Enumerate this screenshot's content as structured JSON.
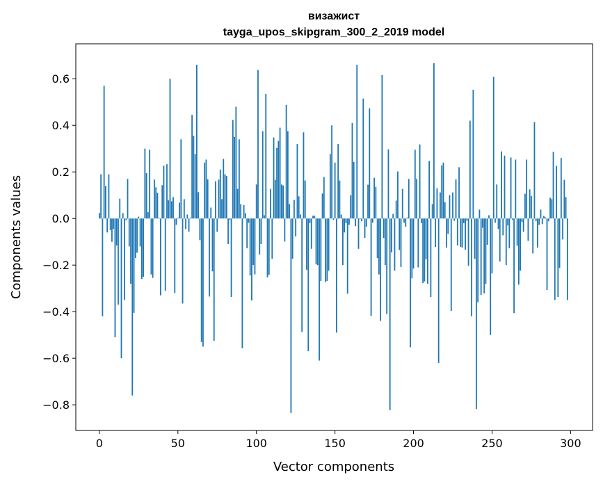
{
  "chart_data": {
    "type": "bar",
    "title": "визажист",
    "subtitle": "tayga_upos_skipgram_300_2_2019 model",
    "xlabel": "Vector components",
    "ylabel": "Components values",
    "xlim": [
      -15,
      314
    ],
    "ylim": [
      -0.91,
      0.75
    ],
    "xticks": [
      0,
      50,
      100,
      150,
      200,
      250,
      300
    ],
    "xtick_labels": [
      "0",
      "50",
      "100",
      "150",
      "200",
      "250",
      "300"
    ],
    "yticks": [
      -0.8,
      -0.6,
      -0.4,
      -0.2,
      0.0,
      0.2,
      0.4,
      0.6
    ],
    "ytick_labels": [
      "−0.8",
      "−0.6",
      "−0.4",
      "−0.2",
      "0.0",
      "0.2",
      "0.4",
      "0.6"
    ],
    "grid": false,
    "bar_color": "#1f77b4",
    "values": [
      0.024,
      0.19,
      -0.42,
      0.57,
      0.14,
      -0.06,
      0.19,
      -0.05,
      -0.1,
      -0.045,
      -0.51,
      -0.116,
      -0.37,
      0.085,
      -0.6,
      0.023,
      -0.35,
      -0.007,
      0.17,
      -0.12,
      -0.28,
      -0.76,
      -0.405,
      -0.17,
      -0.147,
      0.008,
      -0.12,
      -0.26,
      -0.25,
      0.3,
      0.195,
      0.027,
      0.295,
      -0.24,
      -0.255,
      0.167,
      0.134,
      0.11,
      0.003,
      -0.33,
      0.143,
      0.227,
      -0.31,
      0.233,
      0.078,
      0.6,
      0.074,
      0.092,
      -0.32,
      -0.027,
      0.003,
      0.068,
      0.34,
      -0.365,
      0.083,
      -0.045,
      0.017,
      -0.057,
      0.003,
      0.445,
      0.355,
      0.277,
      0.66,
      0.113,
      -0.093,
      -0.53,
      -0.55,
      0.24,
      0.253,
      0.168,
      -0.335,
      0.047,
      -0.227,
      -0.525,
      0.16,
      -0.057,
      0.167,
      0.21,
      0.083,
      0.256,
      0.19,
      0.183,
      -0.11,
      -0.006,
      -0.337,
      0.423,
      0.35,
      0.48,
      0.127,
      0.34,
      0.062,
      -0.557,
      0.058,
      0.023,
      -0.128,
      -0.018,
      -0.245,
      -0.352,
      -0.2,
      -0.24,
      0.146,
      0.637,
      -0.155,
      -0.11,
      0.375,
      0.014,
      0.535,
      -0.253,
      -0.242,
      0.127,
      -0.173,
      0.348,
      0.166,
      0.303,
      0.333,
      0.39,
      0.146,
      0.142,
      -0.099,
      0.488,
      0.375,
      0.062,
      -0.835,
      -0.173,
      0.08,
      -0.077,
      0.32,
      0.095,
      0.017,
      -0.487,
      0.37,
      0.163,
      -0.22,
      -0.57,
      -0.02,
      -0.13,
      0.012,
      0.012,
      -0.197,
      -0.2,
      -0.61,
      -0.268,
      0.107,
      0.178,
      -0.273,
      -0.268,
      -0.224,
      0.277,
      0.4,
      -0.006,
      0.24,
      -0.49,
      0.32,
      0.163,
      0.017,
      -0.2,
      -0.06,
      -0.02,
      -0.323,
      -0.027,
      0.1,
      0.41,
      0.243,
      -0.033,
      0.66,
      -0.13,
      -0.003,
      -0.012,
      0.515,
      -0.083,
      -0.035,
      0.145,
      0.473,
      -0.418,
      -0.018,
      0.175,
      0.136,
      -0.17,
      -0.24,
      -0.44,
      0.616,
      -0.083,
      -0.2,
      -0.41,
      0.297,
      -0.823,
      -0.146,
      0.02,
      -0.224,
      0.077,
      0.202,
      -0.135,
      -0.208,
      0.127,
      -0.018,
      -0.035,
      0.004,
      0.17,
      -0.553,
      -0.257,
      -0.215,
      0.295,
      0.17,
      -0.21,
      0.318,
      -0.02,
      -0.277,
      -0.27,
      -0.175,
      -0.28,
      0.247,
      -0.337,
      0.062,
      0.667,
      -0.122,
      0.13,
      -0.62,
      0.112,
      0.228,
      0.24,
      0.07,
      -0.125,
      -0.066,
      0.1,
      -0.397,
      0.112,
      -0.01,
      0.168,
      -0.116,
      0.22,
      -0.122,
      -0.125,
      -0.02,
      -0.134,
      -0.01,
      -0.203,
      0.42,
      -0.42,
      0.553,
      -0.173,
      -0.818,
      -0.36,
      0.038,
      -0.328,
      -0.04,
      -0.322,
      -0.28,
      -0.113,
      0.014,
      -0.5,
      -0.236,
      0.608,
      -0.018,
      0.146,
      -0.045,
      -0.185,
      0.288,
      -0.072,
      0.27,
      -0.2,
      -0.03,
      -0.128,
      0.262,
      -0.006,
      -0.406,
      0.253,
      -0.117,
      -0.284,
      -0.224,
      -0.015,
      -0.057,
      0.106,
      0.253,
      -0.096,
      0.125,
      0.097,
      -0.15,
      0.414,
      -0.012,
      -0.125,
      -0.027,
      0.038,
      -0.024,
      0.011,
      0.005,
      -0.307,
      -0.012,
      0.089,
      0.083,
      0.286,
      -0.35,
      0.226,
      -0.337,
      -0.212,
      0.26,
      -0.09,
      0.166,
      0.092,
      -0.35
    ]
  }
}
